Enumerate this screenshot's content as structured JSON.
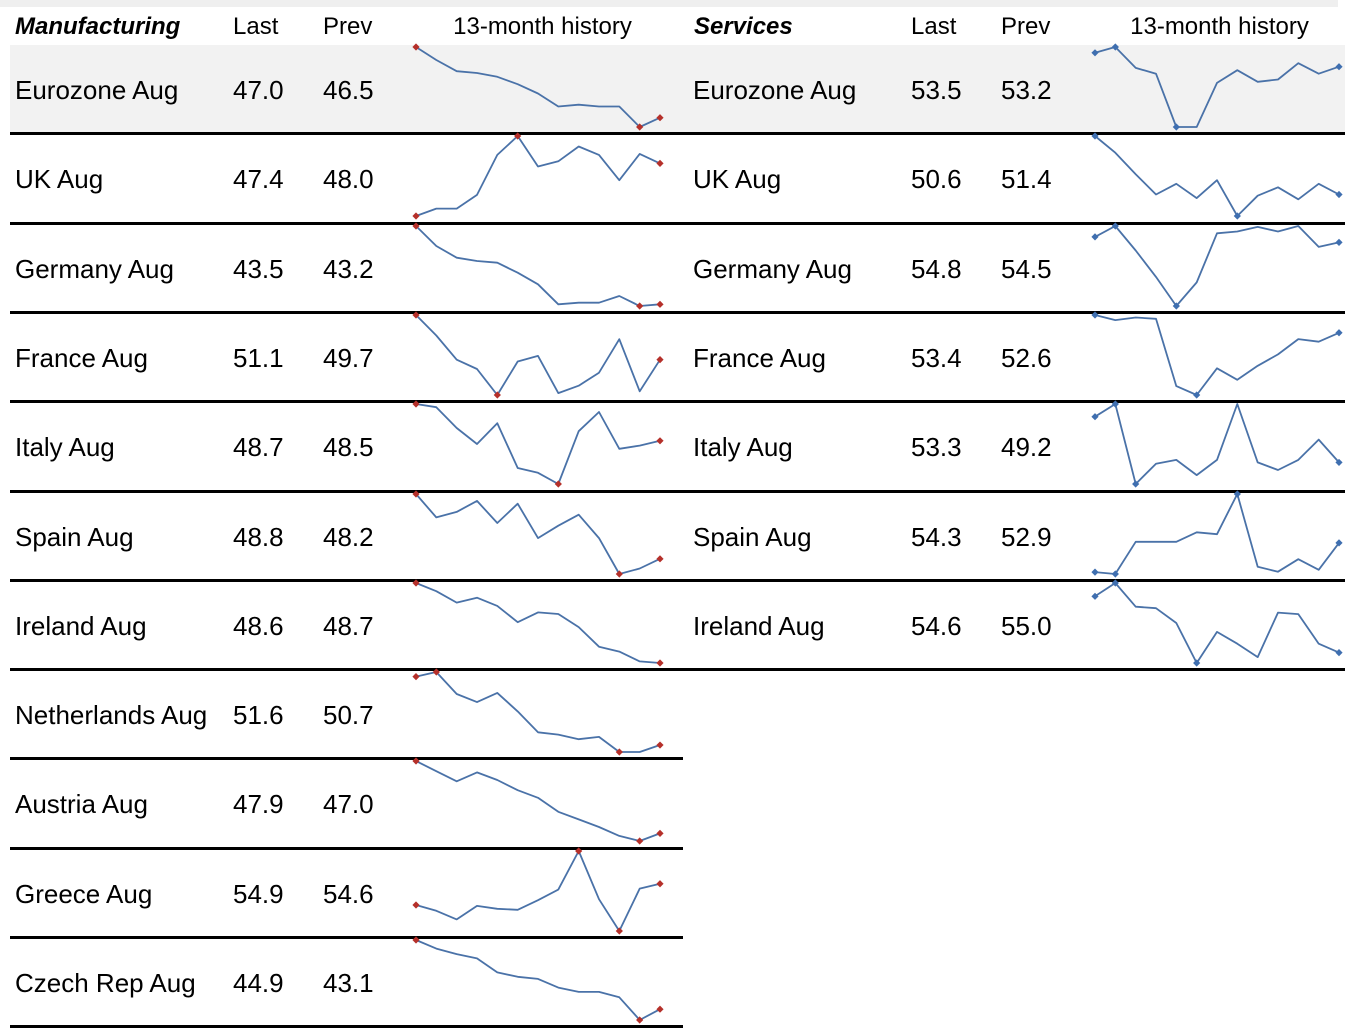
{
  "colors": {
    "line": "#4a72a8",
    "blue_marker": "#3f6fb0",
    "red_marker": "#b5302a",
    "shade": "#f2f2f2",
    "topbar": "#efefef"
  },
  "manufacturing": {
    "title": "Manufacturing",
    "col_last": "Last",
    "col_prev": "Prev",
    "col_history": "13-month history",
    "rows": [
      {
        "label": "Eurozone Aug",
        "last": "47.0",
        "prev": "46.5",
        "history": [
          50.8,
          50.1,
          49.5,
          49.4,
          49.2,
          48.8,
          48.3,
          47.6,
          47.7,
          47.6,
          47.6,
          46.5,
          47.0
        ]
      },
      {
        "label": "UK Aug",
        "last": "47.4",
        "prev": "48.0",
        "history": [
          43.9,
          44.6,
          44.6,
          45.9,
          49.7,
          51.5,
          48.6,
          49.1,
          50.5,
          49.7,
          47.3,
          49.8,
          48.9
        ]
      },
      {
        "label": "Germany Aug",
        "last": "43.5",
        "prev": "43.2",
        "history": [
          48.0,
          46.8,
          46.1,
          45.9,
          45.8,
          45.2,
          44.5,
          43.3,
          43.4,
          43.4,
          43.8,
          43.2,
          43.3
        ]
      },
      {
        "label": "France Aug",
        "last": "51.1",
        "prev": "49.7",
        "history": [
          51.2,
          50.1,
          48.8,
          48.3,
          46.9,
          48.7,
          49.0,
          47.0,
          47.4,
          48.1,
          49.9,
          47.1,
          48.8
        ]
      },
      {
        "label": "Italy Aug",
        "last": "48.7",
        "prev": "48.5",
        "history": [
          49.9,
          49.7,
          48.4,
          47.4,
          48.7,
          45.9,
          45.6,
          44.9,
          48.2,
          49.4,
          47.1,
          47.3,
          47.6
        ]
      },
      {
        "label": "Spain Aug",
        "last": "48.8",
        "prev": "48.2",
        "history": [
          51.1,
          49.4,
          49.8,
          50.6,
          49.0,
          50.4,
          47.9,
          48.8,
          49.6,
          47.9,
          45.3,
          45.7,
          46.4
        ]
      },
      {
        "label": "Ireland Aug",
        "last": "48.6",
        "prev": "48.7",
        "history": [
          52.3,
          51.8,
          51.1,
          51.4,
          50.9,
          49.9,
          50.5,
          50.4,
          49.6,
          48.4,
          48.1,
          47.5,
          47.4
        ]
      },
      {
        "label": "Netherlands Aug",
        "last": "51.6",
        "prev": "50.7",
        "history": [
          53.4,
          53.8,
          51.9,
          51.2,
          52.0,
          50.4,
          48.6,
          48.4,
          48.0,
          48.2,
          46.9,
          46.9,
          47.5
        ]
      },
      {
        "label": "Austria Aug",
        "last": "47.9",
        "prev": "47.0",
        "history": [
          52.5,
          51.7,
          50.9,
          51.6,
          51.0,
          50.2,
          49.6,
          48.5,
          47.9,
          47.3,
          46.6,
          46.2,
          46.8
        ]
      },
      {
        "label": "Greece Aug",
        "last": "54.9",
        "prev": "54.6",
        "history": [
          48.0,
          47.4,
          46.5,
          47.9,
          47.6,
          47.5,
          48.5,
          49.6,
          53.6,
          48.6,
          45.3,
          49.7,
          50.2
        ]
      },
      {
        "label": "Czech Rep Aug",
        "last": "44.9",
        "prev": "43.1",
        "history": [
          50.6,
          49.8,
          49.3,
          48.9,
          47.6,
          47.2,
          47.0,
          46.2,
          45.8,
          45.8,
          45.3,
          43.2,
          44.2
        ]
      }
    ]
  },
  "services": {
    "title": "Services",
    "col_last": "Last",
    "col_prev": "Prev",
    "col_history": "13-month history",
    "rows": [
      {
        "label": "Eurozone Aug",
        "last": "53.5",
        "prev": "53.2",
        "history": [
          53.0,
          53.5,
          51.7,
          51.2,
          46.6,
          46.6,
          50.4,
          51.5,
          50.5,
          50.7,
          52.1,
          51.2,
          51.8
        ]
      },
      {
        "label": "UK Aug",
        "last": "50.6",
        "prev": "51.4",
        "history": [
          54.0,
          52.6,
          50.8,
          49.1,
          50.0,
          48.8,
          50.3,
          47.3,
          49.0,
          49.7,
          48.7,
          50.0,
          49.1
        ]
      },
      {
        "label": "Germany Aug",
        "last": "54.8",
        "prev": "54.5",
        "history": [
          53.5,
          54.7,
          52.0,
          49.1,
          45.9,
          48.5,
          53.9,
          54.1,
          54.6,
          54.1,
          54.7,
          52.4,
          52.9
        ]
      },
      {
        "label": "France Aug",
        "last": "53.4",
        "prev": "52.6",
        "history": [
          55.9,
          55.5,
          55.7,
          55.6,
          50.3,
          49.6,
          51.7,
          50.8,
          51.9,
          52.8,
          54.0,
          53.8,
          54.5
        ]
      },
      {
        "label": "Italy Aug",
        "last": "53.3",
        "prev": "49.2",
        "history": [
          53.0,
          54.0,
          47.7,
          49.3,
          49.6,
          48.4,
          49.6,
          54.0,
          49.4,
          48.8,
          49.6,
          51.2,
          49.4
        ]
      },
      {
        "label": "Spain Aug",
        "last": "54.3",
        "prev": "52.9",
        "history": [
          44.4,
          43.9,
          52.4,
          52.4,
          52.4,
          54.9,
          54.4,
          65.0,
          45.8,
          44.5,
          47.8,
          45.0,
          52.1
        ]
      },
      {
        "label": "Ireland Aug",
        "last": "54.6",
        "prev": "55.0",
        "history": [
          53.4,
          54.3,
          52.7,
          52.6,
          51.6,
          48.9,
          51.0,
          50.2,
          49.3,
          52.3,
          52.2,
          50.2,
          49.6
        ]
      }
    ]
  }
}
